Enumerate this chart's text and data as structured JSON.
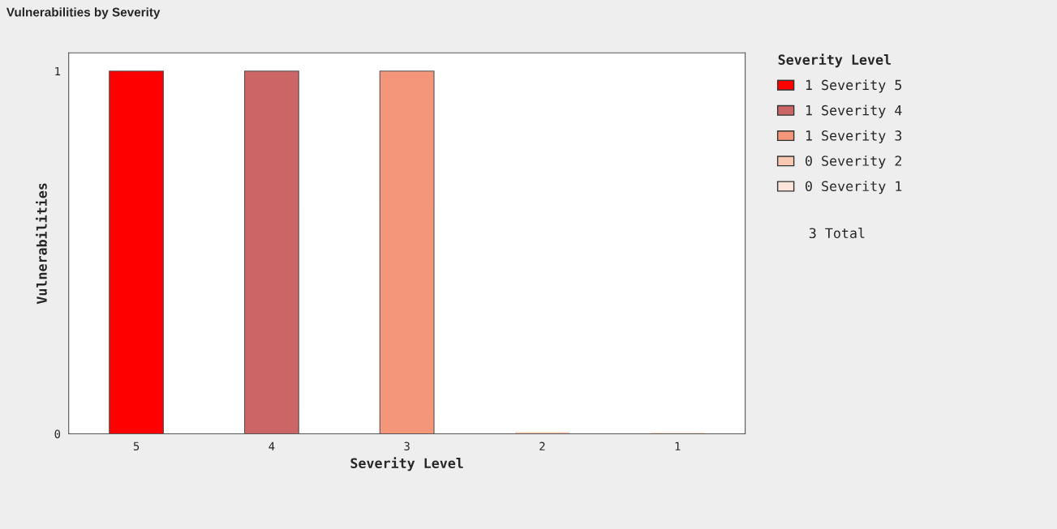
{
  "chart_data": {
    "type": "bar",
    "title": "Vulnerabilities by Severity",
    "xlabel": "Severity Level",
    "ylabel": "Vulnerabilities",
    "legend_title": "Severity Level",
    "categories": [
      "5",
      "4",
      "3",
      "2",
      "1"
    ],
    "series": [
      {
        "name": "1 Severity 5",
        "color": "#ff0000",
        "values": [
          1,
          null,
          null,
          null,
          null
        ]
      },
      {
        "name": "1 Severity 4",
        "color": "#cc6666",
        "values": [
          null,
          1,
          null,
          null,
          null
        ]
      },
      {
        "name": "1 Severity 3",
        "color": "#f4967a",
        "values": [
          null,
          null,
          1,
          null,
          null
        ]
      },
      {
        "name": "0 Severity 2",
        "color": "#f9c8b2",
        "values": [
          null,
          null,
          null,
          0,
          null
        ]
      },
      {
        "name": "0 Severity 1",
        "color": "#fbe5da",
        "values": [
          null,
          null,
          null,
          null,
          0
        ]
      }
    ],
    "ylim": [
      0,
      1.05
    ],
    "yticks": [
      0,
      1
    ],
    "grid": false,
    "legend": "right",
    "annotations": [
      "3 Total"
    ]
  }
}
